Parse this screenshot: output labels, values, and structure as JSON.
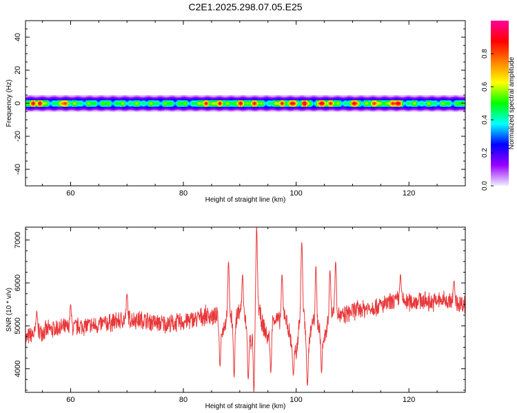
{
  "title": "C2E1.2025.298.07.05.E25",
  "chart_data": [
    {
      "type": "heatmap",
      "name": "spectrogram",
      "xlabel": "Height of straight line (km)",
      "ylabel": "Frequency (Hz)",
      "xlim": [
        52,
        130
      ],
      "ylim": [
        -50,
        50
      ],
      "x_ticks": [
        60,
        80,
        100,
        120
      ],
      "y_ticks": [
        -40,
        -20,
        0,
        20,
        40
      ],
      "band": {
        "center_hz": 0,
        "core_halfwidth_hz": 2,
        "fringe_halfwidth_hz": 5,
        "hotspots_km": [
          53.5,
          54.5,
          59,
          84,
          86.5,
          90,
          92.5,
          97.5,
          99.5,
          101.5,
          104.5,
          106,
          110.5,
          114,
          117,
          118
        ]
      },
      "colorbar": {
        "label": "Normalized spectral amplitude",
        "range": [
          0,
          1
        ],
        "ticks": [
          0.0,
          0.2,
          0.4,
          0.6,
          0.8
        ],
        "colors": [
          "#f0f0ff",
          "#9900ff",
          "#0000ff",
          "#00ffff",
          "#00ff00",
          "#ffff00",
          "#ff8000",
          "#ff0000",
          "#ff0099"
        ]
      }
    },
    {
      "type": "line",
      "name": "snr",
      "xlabel": "Height of straight line (km)",
      "ylabel": "SNR (10 * v/v)",
      "xlim": [
        52,
        130
      ],
      "ylim": [
        3450,
        7300
      ],
      "x_ticks": [
        60,
        80,
        100,
        120
      ],
      "y_ticks": [
        4000,
        5000,
        6000,
        7000
      ],
      "color": "#e8383a",
      "series": [
        {
          "x": [
            52,
            54,
            56,
            58,
            60,
            62,
            64,
            66,
            68,
            70,
            72,
            74,
            76,
            78,
            80,
            82,
            84,
            86,
            87,
            88,
            89,
            90,
            91,
            92,
            93,
            94,
            95,
            96,
            97,
            98,
            99,
            100,
            101,
            102,
            103,
            104,
            105,
            106,
            107,
            108,
            110,
            112,
            114,
            116,
            118,
            120,
            122,
            124,
            126,
            128,
            130
          ],
          "values": [
            4700,
            4850,
            4900,
            4950,
            4950,
            5000,
            5000,
            5050,
            5100,
            5150,
            5150,
            5100,
            5050,
            5050,
            5100,
            5150,
            5250,
            5200,
            4900,
            5300,
            5000,
            5400,
            5100,
            4600,
            5600,
            5050,
            4700,
            5200,
            5100,
            5300,
            4700,
            4300,
            5700,
            4500,
            5100,
            5000,
            4700,
            5300,
            5400,
            5200,
            5350,
            5400,
            5450,
            5500,
            5600,
            5550,
            5600,
            5550,
            5600,
            5550,
            5500
          ],
          "noise_pm": 250,
          "spikes": [
            {
              "x": 54,
              "y": 5350
            },
            {
              "x": 60,
              "y": 5500
            },
            {
              "x": 70,
              "y": 5750
            },
            {
              "x": 86.5,
              "y": 4050
            },
            {
              "x": 88,
              "y": 6500
            },
            {
              "x": 89,
              "y": 3800
            },
            {
              "x": 90.5,
              "y": 6200
            },
            {
              "x": 91.5,
              "y": 3750
            },
            {
              "x": 92.5,
              "y": 3450
            },
            {
              "x": 93,
              "y": 7300
            },
            {
              "x": 95.5,
              "y": 3900
            },
            {
              "x": 97.5,
              "y": 6200
            },
            {
              "x": 99.5,
              "y": 3850
            },
            {
              "x": 101,
              "y": 6950
            },
            {
              "x": 102,
              "y": 3600
            },
            {
              "x": 103.5,
              "y": 6400
            },
            {
              "x": 104.5,
              "y": 3900
            },
            {
              "x": 106,
              "y": 6300
            },
            {
              "x": 107,
              "y": 6500
            },
            {
              "x": 118.5,
              "y": 6200
            },
            {
              "x": 128,
              "y": 6050
            }
          ]
        }
      ]
    }
  ]
}
